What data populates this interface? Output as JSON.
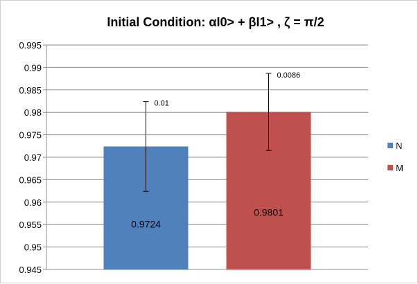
{
  "chart_data": {
    "type": "bar",
    "title": "Initial Condition:  αI0> + βI1> , ζ =  π/2",
    "categories": [
      "N",
      "M"
    ],
    "values": [
      0.9724,
      0.9801
    ],
    "value_labels": [
      "0.9724",
      "0.9801"
    ],
    "errors": [
      0.01,
      0.0086
    ],
    "error_labels": [
      "0.01",
      "0.0086"
    ],
    "colors": [
      "#4f81bd",
      "#c0504d"
    ],
    "ylim": [
      0.945,
      0.995
    ],
    "ytick_labels": [
      "0.945",
      "0.95",
      "0.955",
      "0.96",
      "0.965",
      "0.97",
      "0.975",
      "0.98",
      "0.985",
      "0.99",
      "0.995"
    ],
    "grid": "horizontal",
    "legend": "right",
    "xlabel": "",
    "ylabel": ""
  }
}
